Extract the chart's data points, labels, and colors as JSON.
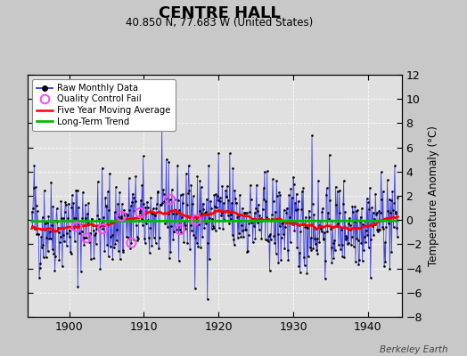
{
  "title": "CENTRE HALL",
  "subtitle": "40.850 N, 77.683 W (United States)",
  "ylabel": "Temperature Anomaly (°C)",
  "watermark": "Berkeley Earth",
  "xlim": [
    1894.5,
    1944.5
  ],
  "ylim": [
    -8,
    12
  ],
  "yticks": [
    -8,
    -6,
    -4,
    -2,
    0,
    2,
    4,
    6,
    8,
    10,
    12
  ],
  "xticks": [
    1900,
    1910,
    1920,
    1930,
    1940
  ],
  "background_color": "#c8c8c8",
  "plot_background": "#e0e0e0",
  "raw_line_color": "#4444dd",
  "raw_dot_color": "#000000",
  "qc_fail_color": "#ff44ff",
  "moving_avg_color": "#ff0000",
  "trend_color": "#00bb00",
  "grid_color": "#ffffff",
  "seed": 42,
  "start_year": 1895,
  "end_year": 1944,
  "qc_years": [
    1901.0,
    1902.3,
    1904.5,
    1907.0,
    1908.3,
    1909.5,
    1913.5,
    1914.8,
    1917.0
  ]
}
